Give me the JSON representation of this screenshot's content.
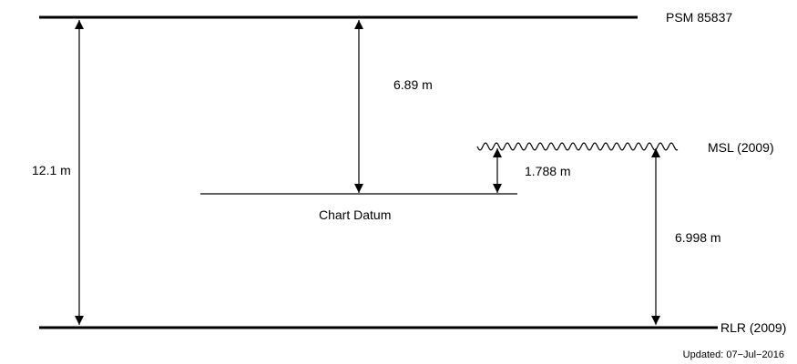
{
  "levels": {
    "psm": "PSM 85837",
    "msl": "MSL (2009)",
    "chart_datum": "Chart Datum",
    "rlr": "RLR (2009)"
  },
  "measurements": {
    "psm_to_rlr": "12.1 m",
    "psm_to_chart_datum": "6.89 m",
    "msl_to_chart_datum": "1.788 m",
    "msl_to_rlr": "6.998 m"
  },
  "footer": {
    "updated": "Updated: 07−Jul−2016"
  },
  "colors": {
    "line": "#000000",
    "background": "#ffffff"
  }
}
